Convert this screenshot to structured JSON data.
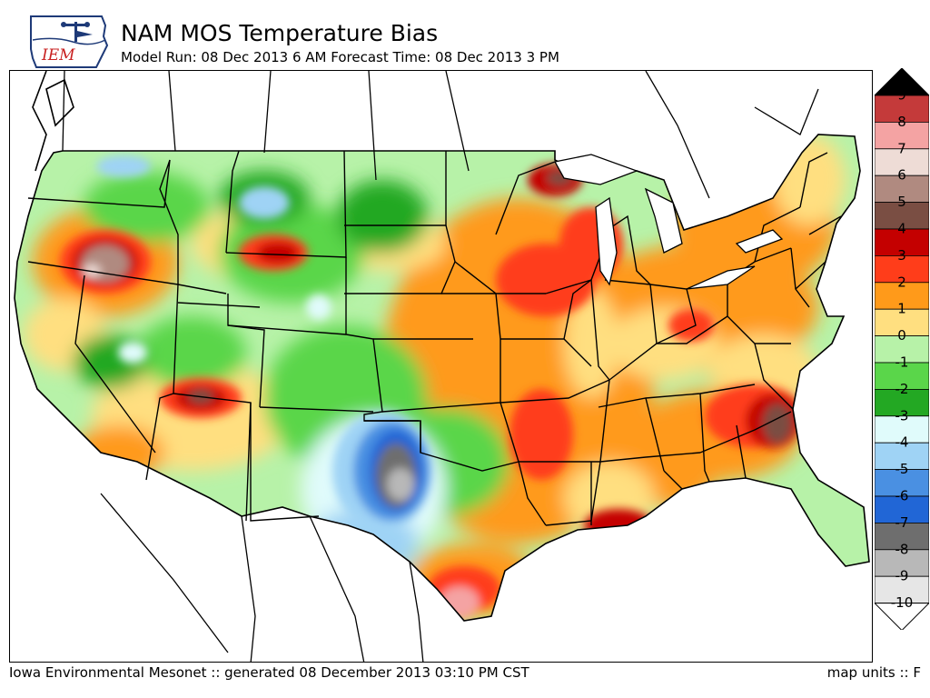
{
  "header": {
    "logo_text": "IEM",
    "title": "NAM MOS Temperature Bias",
    "subtitle": "Model Run: 08 Dec 2013 6 AM Forecast Time: 08 Dec 2013 3 PM"
  },
  "footer": {
    "credit": "Iowa Environmental Mesonet :: generated 08 December 2013 03:10 PM CST",
    "units": "map units :: F"
  },
  "legend": {
    "levels": [
      {
        "label": "9",
        "color": "#000000"
      },
      {
        "label": "8",
        "color": "#c43a3a"
      },
      {
        "label": "7",
        "color": "#f4a3a3"
      },
      {
        "label": "6",
        "color": "#eedcd6"
      },
      {
        "label": "5",
        "color": "#b08a80"
      },
      {
        "label": "4",
        "color": "#7a4e43"
      },
      {
        "label": "3",
        "color": "#c40000"
      },
      {
        "label": "2",
        "color": "#ff3d1a"
      },
      {
        "label": "1",
        "color": "#ff9a1a"
      },
      {
        "label": "0",
        "color": "#ffdf80"
      },
      {
        "label": "-1",
        "color": "#b7f2a8"
      },
      {
        "label": "-2",
        "color": "#5ad64a"
      },
      {
        "label": "-3",
        "color": "#23a823"
      },
      {
        "label": "-4",
        "color": "#e0fbfb"
      },
      {
        "label": "-5",
        "color": "#9fd3f5"
      },
      {
        "label": "-6",
        "color": "#4a90e2"
      },
      {
        "label": "-7",
        "color": "#2166d6"
      },
      {
        "label": "-8",
        "color": "#6e6e6e"
      },
      {
        "label": "-9",
        "color": "#b8b8b8"
      },
      {
        "label": "-10",
        "color": "#e6e6e6"
      }
    ]
  }
}
